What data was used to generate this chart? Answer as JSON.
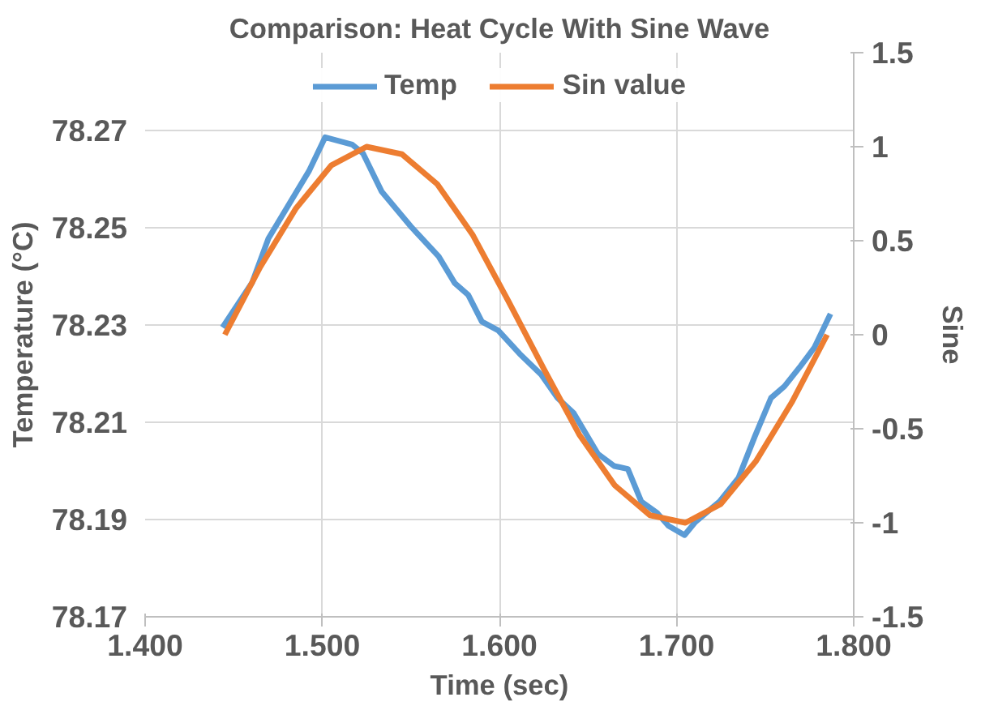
{
  "chart_data": {
    "type": "line",
    "title": "Comparison: Heat Cycle With Sine Wave",
    "xlabel": "Time (sec)",
    "ylabel": "Temperature (°C)",
    "y2label": "Sine",
    "xlim": [
      1.4,
      1.8
    ],
    "xticks": [
      {
        "value": 1.4,
        "label": "1.400"
      },
      {
        "value": 1.5,
        "label": "1.500"
      },
      {
        "value": 1.6,
        "label": "1.600"
      },
      {
        "value": 1.7,
        "label": "1.700"
      },
      {
        "value": 1.8,
        "label": "1.800"
      }
    ],
    "ylim": [
      78.17,
      78.286
    ],
    "yticks": [
      78.17,
      78.19,
      78.21,
      78.23,
      78.25,
      78.27
    ],
    "y2lim": [
      -1.5,
      1.5
    ],
    "y2ticks": [
      -1.5,
      -1,
      -0.5,
      0,
      0.5,
      1,
      1.5
    ],
    "grid": true,
    "legend": "top",
    "line_style": "solid",
    "marker": "none",
    "series": [
      {
        "name": "Temp",
        "color": "#5b9bd5",
        "x": [
          1.4437,
          1.4604,
          1.4696,
          1.4924,
          1.5016,
          1.5169,
          1.523,
          1.5336,
          1.5504,
          1.5657,
          1.5748,
          1.5824,
          1.5901,
          1.5993,
          1.6114,
          1.6236,
          1.6328,
          1.6419,
          1.6556,
          1.6648,
          1.6725,
          1.6801,
          1.6892,
          1.6954,
          1.7045,
          1.7106,
          1.7243,
          1.735,
          1.7442,
          1.7533,
          1.7609,
          1.7701,
          1.7777,
          1.7869
        ],
        "values": [
          78.2295,
          78.2387,
          78.2478,
          78.2616,
          78.2686,
          78.2671,
          78.2653,
          78.2574,
          78.2501,
          78.2441,
          78.2386,
          78.2362,
          78.2307,
          78.2289,
          78.2241,
          78.2198,
          78.215,
          78.2119,
          78.2035,
          78.201,
          78.2004,
          78.1937,
          78.1913,
          78.1887,
          78.1868,
          78.1895,
          78.1937,
          78.1986,
          78.2071,
          78.215,
          78.2174,
          78.2216,
          78.2253,
          78.2323
        ]
      },
      {
        "name": "Sin value",
        "color": "#ed7d31",
        "axis": "y2",
        "x": [
          1.445,
          1.465,
          1.485,
          1.505,
          1.525,
          1.545,
          1.565,
          1.585,
          1.605,
          1.625,
          1.645,
          1.665,
          1.685,
          1.705,
          1.725,
          1.745,
          1.765,
          1.785
        ],
        "values": [
          0,
          0.36,
          0.67,
          0.9,
          1.0,
          0.96,
          0.8,
          0.53,
          0.18,
          -0.18,
          -0.53,
          -0.8,
          -0.96,
          -1.0,
          -0.9,
          -0.67,
          -0.36,
          0
        ]
      }
    ]
  }
}
